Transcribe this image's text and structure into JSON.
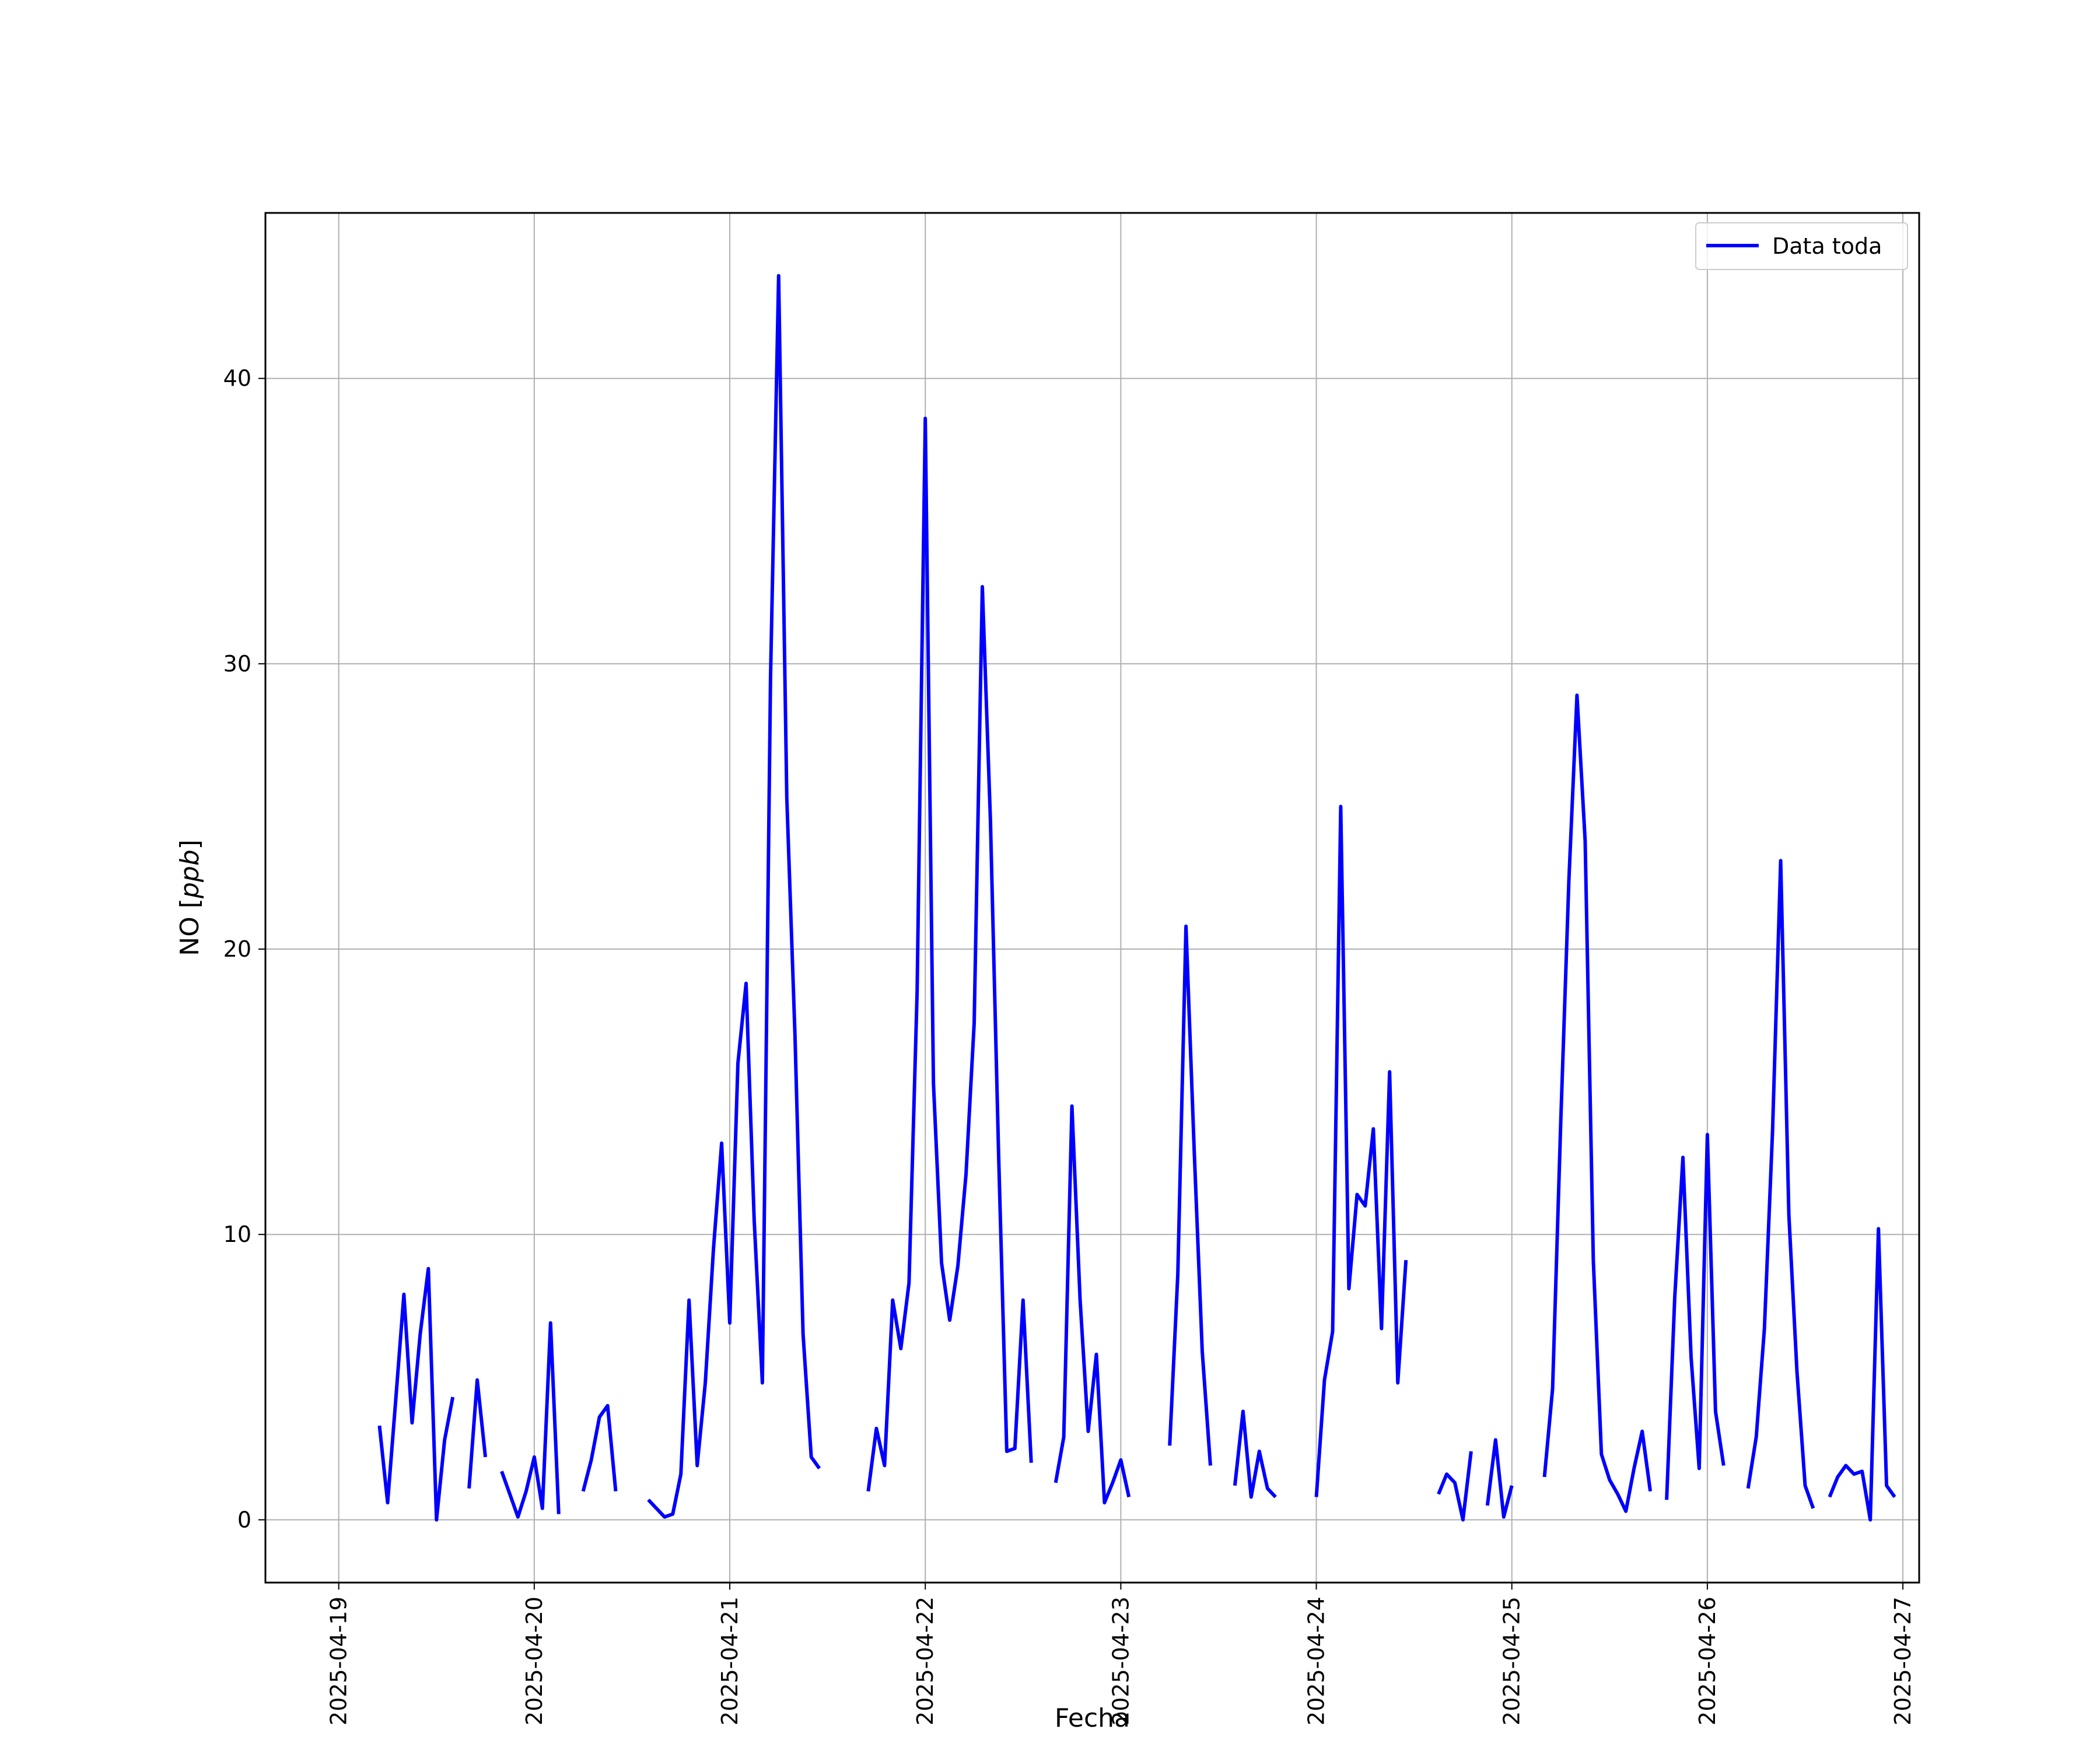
{
  "chart_data": {
    "type": "line",
    "xlabel": "Fecha",
    "ylabel_main": "NO [",
    "ylabel_unit": "ppb",
    "ylabel_close": "]",
    "ylim": [
      -2.2,
      45.8
    ],
    "xlim": [
      "2025-04-18T15:00",
      "2025-04-27T02:00"
    ],
    "grid": true,
    "legend_position": "top-right",
    "yticks": [
      0,
      10,
      20,
      30,
      40
    ],
    "xticks": [
      "2025-04-19",
      "2025-04-20",
      "2025-04-21",
      "2025-04-22",
      "2025-04-23",
      "2025-04-24",
      "2025-04-25",
      "2025-04-26",
      "2025-04-27"
    ],
    "series": [
      {
        "name": "Data toda",
        "color": "#0000ff",
        "segments": [
          [
            [
              "2025-04-19T05:00",
              3.3
            ],
            [
              "2025-04-19T06:00",
              0.6
            ],
            [
              "2025-04-19T07:00",
              4.2
            ],
            [
              "2025-04-19T08:00",
              7.9
            ],
            [
              "2025-04-19T09:00",
              3.4
            ],
            [
              "2025-04-19T10:00",
              6.5
            ],
            [
              "2025-04-19T11:00",
              8.8
            ],
            [
              "2025-04-19T12:00",
              0.0
            ],
            [
              "2025-04-19T13:00",
              2.8
            ],
            [
              "2025-04-19T14:00",
              4.3
            ]
          ],
          [
            [
              "2025-04-19T16:00",
              1.1
            ],
            [
              "2025-04-19T17:00",
              4.9
            ],
            [
              "2025-04-19T18:00",
              2.2
            ]
          ],
          [
            [
              "2025-04-19T20:00",
              1.7
            ],
            [
              "2025-04-19T21:00",
              0.9
            ],
            [
              "2025-04-19T22:00",
              0.1
            ],
            [
              "2025-04-19T23:00",
              1.0
            ],
            [
              "2025-04-20T00:00",
              2.2
            ],
            [
              "2025-04-20T01:00",
              0.4
            ],
            [
              "2025-04-20T02:00",
              6.9
            ],
            [
              "2025-04-20T03:00",
              0.2
            ]
          ],
          [
            [
              "2025-04-20T06:00",
              1.0
            ],
            [
              "2025-04-20T07:00",
              2.1
            ],
            [
              "2025-04-20T08:00",
              3.6
            ],
            [
              "2025-04-20T09:00",
              4.0
            ],
            [
              "2025-04-20T10:00",
              1.0
            ]
          ],
          [
            [
              "2025-04-20T14:00",
              0.7
            ],
            [
              "2025-04-20T15:00",
              0.4
            ],
            [
              "2025-04-20T16:00",
              0.1
            ],
            [
              "2025-04-20T17:00",
              0.2
            ],
            [
              "2025-04-20T18:00",
              1.6
            ],
            [
              "2025-04-20T19:00",
              7.7
            ],
            [
              "2025-04-20T20:00",
              1.9
            ],
            [
              "2025-04-20T21:00",
              4.8
            ],
            [
              "2025-04-20T22:00",
              9.5
            ],
            [
              "2025-04-20T23:00",
              13.2
            ],
            [
              "2025-04-21T00:00",
              6.9
            ],
            [
              "2025-04-21T01:00",
              16.0
            ],
            [
              "2025-04-21T02:00",
              18.8
            ],
            [
              "2025-04-21T03:00",
              10.5
            ],
            [
              "2025-04-21T04:00",
              4.8
            ],
            [
              "2025-04-21T05:00",
              29.5
            ],
            [
              "2025-04-21T06:00",
              43.6
            ],
            [
              "2025-04-21T07:00",
              25.3
            ],
            [
              "2025-04-21T08:00",
              17.0
            ],
            [
              "2025-04-21T09:00",
              6.5
            ],
            [
              "2025-04-21T10:00",
              2.2
            ],
            [
              "2025-04-21T11:00",
              1.8
            ]
          ],
          [
            [
              "2025-04-21T17:00",
              1.0
            ],
            [
              "2025-04-21T18:00",
              3.2
            ],
            [
              "2025-04-21T19:00",
              1.9
            ],
            [
              "2025-04-21T20:00",
              7.7
            ],
            [
              "2025-04-21T21:00",
              6.0
            ],
            [
              "2025-04-21T22:00",
              8.3
            ],
            [
              "2025-04-21T23:00",
              18.5
            ],
            [
              "2025-04-22T00:00",
              38.6
            ],
            [
              "2025-04-22T01:00",
              15.3
            ],
            [
              "2025-04-22T02:00",
              9.0
            ],
            [
              "2025-04-22T03:00",
              7.0
            ],
            [
              "2025-04-22T04:00",
              8.9
            ],
            [
              "2025-04-22T05:00",
              12.1
            ],
            [
              "2025-04-22T06:00",
              17.4
            ],
            [
              "2025-04-22T07:00",
              32.7
            ],
            [
              "2025-04-22T08:00",
              24.5
            ],
            [
              "2025-04-22T09:00",
              12.8
            ],
            [
              "2025-04-22T10:00",
              2.4
            ],
            [
              "2025-04-22T11:00",
              2.5
            ],
            [
              "2025-04-22T12:00",
              7.7
            ],
            [
              "2025-04-22T13:00",
              2.0
            ]
          ],
          [
            [
              "2025-04-22T16:00",
              1.3
            ],
            [
              "2025-04-22T17:00",
              2.9
            ],
            [
              "2025-04-22T18:00",
              14.5
            ],
            [
              "2025-04-22T19:00",
              7.7
            ],
            [
              "2025-04-22T20:00",
              3.1
            ],
            [
              "2025-04-22T21:00",
              5.8
            ],
            [
              "2025-04-22T22:00",
              0.6
            ],
            [
              "2025-04-22T23:00",
              1.3
            ],
            [
              "2025-04-23T00:00",
              2.1
            ],
            [
              "2025-04-23T01:00",
              0.8
            ]
          ],
          [
            [
              "2025-04-23T06:00",
              2.6
            ],
            [
              "2025-04-23T07:00",
              8.6
            ],
            [
              "2025-04-23T08:00",
              20.8
            ],
            [
              "2025-04-23T09:00",
              13.0
            ],
            [
              "2025-04-23T10:00",
              5.9
            ],
            [
              "2025-04-23T11:00",
              1.9
            ]
          ],
          [
            [
              "2025-04-23T14:00",
              1.2
            ],
            [
              "2025-04-23T15:00",
              3.8
            ],
            [
              "2025-04-23T16:00",
              0.8
            ],
            [
              "2025-04-23T17:00",
              2.4
            ],
            [
              "2025-04-23T18:00",
              1.1
            ],
            [
              "2025-04-23T19:00",
              0.8
            ]
          ],
          [
            [
              "2025-04-24T00:00",
              0.8
            ],
            [
              "2025-04-24T01:00",
              4.9
            ],
            [
              "2025-04-24T02:00",
              6.6
            ],
            [
              "2025-04-24T03:00",
              25.0
            ],
            [
              "2025-04-24T04:00",
              8.1
            ],
            [
              "2025-04-24T05:00",
              11.4
            ],
            [
              "2025-04-24T06:00",
              11.0
            ],
            [
              "2025-04-24T07:00",
              13.7
            ],
            [
              "2025-04-24T08:00",
              6.7
            ],
            [
              "2025-04-24T09:00",
              15.7
            ],
            [
              "2025-04-24T10:00",
              4.8
            ],
            [
              "2025-04-24T11:00",
              9.1
            ]
          ],
          [
            [
              "2025-04-24T15:00",
              0.9
            ],
            [
              "2025-04-24T16:00",
              1.6
            ],
            [
              "2025-04-24T17:00",
              1.3
            ],
            [
              "2025-04-24T18:00",
              0.0
            ],
            [
              "2025-04-24T19:00",
              2.4
            ]
          ],
          [
            [
              "2025-04-24T21:00",
              0.5
            ],
            [
              "2025-04-24T22:00",
              2.8
            ],
            [
              "2025-04-24T23:00",
              0.1
            ],
            [
              "2025-04-25T00:00",
              1.2
            ]
          ],
          [
            [
              "2025-04-25T04:00",
              1.5
            ],
            [
              "2025-04-25T05:00",
              4.6
            ],
            [
              "2025-04-25T06:00",
              13.9
            ],
            [
              "2025-04-25T07:00",
              22.4
            ],
            [
              "2025-04-25T08:00",
              28.9
            ],
            [
              "2025-04-25T09:00",
              23.8
            ],
            [
              "2025-04-25T10:00",
              9.1
            ],
            [
              "2025-04-25T11:00",
              2.3
            ],
            [
              "2025-04-25T12:00",
              1.4
            ],
            [
              "2025-04-25T13:00",
              0.9
            ],
            [
              "2025-04-25T14:00",
              0.3
            ],
            [
              "2025-04-25T15:00",
              1.8
            ],
            [
              "2025-04-25T16:00",
              3.1
            ],
            [
              "2025-04-25T17:00",
              1.0
            ]
          ],
          [
            [
              "2025-04-25T19:00",
              0.7
            ],
            [
              "2025-04-25T20:00",
              7.8
            ],
            [
              "2025-04-25T21:00",
              12.7
            ],
            [
              "2025-04-25T22:00",
              5.7
            ],
            [
              "2025-04-25T23:00",
              1.8
            ],
            [
              "2025-04-26T00:00",
              13.5
            ],
            [
              "2025-04-26T01:00",
              3.8
            ],
            [
              "2025-04-26T02:00",
              1.9
            ]
          ],
          [
            [
              "2025-04-26T05:00",
              1.1
            ],
            [
              "2025-04-26T06:00",
              2.9
            ],
            [
              "2025-04-26T07:00",
              6.7
            ],
            [
              "2025-04-26T08:00",
              13.6
            ],
            [
              "2025-04-26T09:00",
              23.1
            ],
            [
              "2025-04-26T10:00",
              10.7
            ],
            [
              "2025-04-26T11:00",
              5.2
            ],
            [
              "2025-04-26T12:00",
              1.2
            ],
            [
              "2025-04-26T13:00",
              0.4
            ]
          ],
          [
            [
              "2025-04-26T15:00",
              0.8
            ],
            [
              "2025-04-26T16:00",
              1.5
            ],
            [
              "2025-04-26T17:00",
              1.9
            ],
            [
              "2025-04-26T18:00",
              1.6
            ],
            [
              "2025-04-26T19:00",
              1.7
            ],
            [
              "2025-04-26T20:00",
              0.0
            ],
            [
              "2025-04-26T21:00",
              10.2
            ],
            [
              "2025-04-26T22:00",
              1.2
            ],
            [
              "2025-04-26T23:00",
              0.8
            ]
          ]
        ]
      }
    ]
  }
}
